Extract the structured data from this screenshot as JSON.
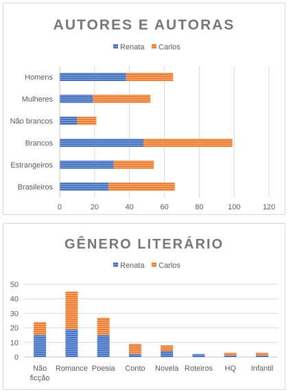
{
  "colors": {
    "renata": "#4472c4",
    "carlos": "#ed7d31",
    "grid": "#d9d9d9",
    "axis": "#bfbfbf",
    "title": "#767676",
    "text": "#595959"
  },
  "chart_data": [
    {
      "type": "bar",
      "orientation": "horizontal",
      "stacked": true,
      "title": "AUTORES E AUTORAS",
      "categories": [
        "Homens",
        "Mulheres",
        "Não brancos",
        "Brancos",
        "Estrangeiros",
        "Brasileiros"
      ],
      "series": [
        {
          "name": "Renata",
          "values": [
            38,
            19,
            10,
            48,
            31,
            28
          ]
        },
        {
          "name": "Carlos",
          "values": [
            27,
            33,
            11,
            51,
            23,
            38
          ]
        }
      ],
      "xlim": [
        0,
        120
      ],
      "xticks": [
        0,
        20,
        40,
        60,
        80,
        100,
        120
      ],
      "grid": true,
      "legend": "top"
    },
    {
      "type": "bar",
      "orientation": "vertical",
      "stacked": true,
      "title": "GÊNERO LITERÁRIO",
      "categories": [
        "Não ficção",
        "Romance",
        "Poesia",
        "Conto",
        "Novela",
        "Roteiros",
        "HQ",
        "Infantil"
      ],
      "category_lines": [
        [
          "Não",
          "ficção"
        ],
        [
          "Romance"
        ],
        [
          "Poesia"
        ],
        [
          "Conto"
        ],
        [
          "Novela"
        ],
        [
          "Roteiros"
        ],
        [
          "HQ"
        ],
        [
          "Infantil"
        ]
      ],
      "series": [
        {
          "name": "Renata",
          "values": [
            15,
            19,
            15,
            2,
            4,
            2,
            1,
            1
          ]
        },
        {
          "name": "Carlos",
          "values": [
            9,
            26,
            12,
            7,
            4,
            0,
            2,
            2
          ]
        }
      ],
      "ylim": [
        0,
        50
      ],
      "yticks": [
        0,
        10,
        20,
        30,
        40,
        50
      ],
      "grid": true,
      "legend": "top"
    }
  ]
}
